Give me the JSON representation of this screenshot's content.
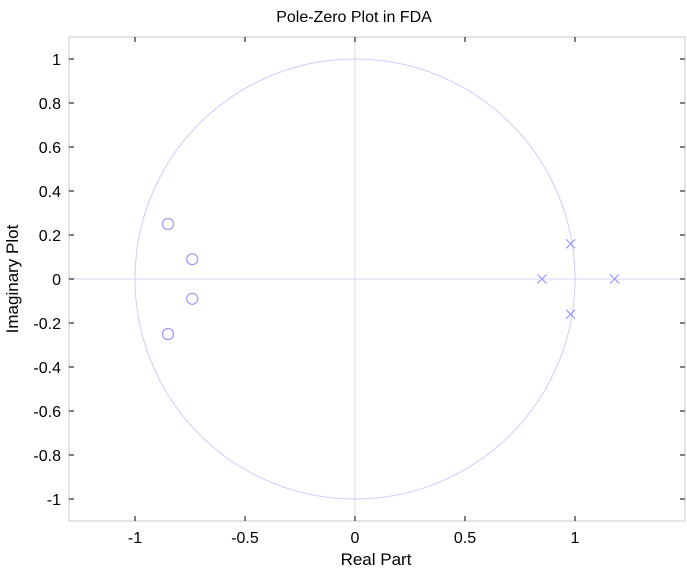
{
  "chart_data": {
    "type": "scatter",
    "title": "Pole-Zero Plot in FDA",
    "xlabel": "Real Part",
    "ylabel": "Imaginary Plot",
    "xlim": [
      -1.3,
      1.5
    ],
    "ylim": [
      -1.1,
      1.1
    ],
    "x_ticks": [
      -1,
      -0.5,
      0,
      0.5,
      1
    ],
    "x_tick_labels": [
      "-1",
      "-0.5",
      "0",
      "0.5",
      "1"
    ],
    "y_ticks": [
      1,
      0.8,
      0.6,
      0.4,
      0.2,
      0,
      -0.2,
      -0.4,
      -0.6,
      -0.8,
      -1
    ],
    "y_tick_labels": [
      "1",
      "0.8",
      "0.6",
      "0.4",
      "0.2",
      "0",
      "-0.2",
      "-0.4",
      "-0.6",
      "-0.8",
      "-1"
    ],
    "unit_circle": true,
    "grid": false,
    "marker_color": "#9999ff",
    "circle_color": "#ccccff",
    "axis_color": "#d8d8f0",
    "series": [
      {
        "marker": "o",
        "points": [
          {
            "x": -0.85,
            "y": 0.25
          },
          {
            "x": -0.74,
            "y": 0.09
          },
          {
            "x": -0.74,
            "y": -0.09
          },
          {
            "x": -0.85,
            "y": -0.25
          }
        ]
      },
      {
        "marker": "x",
        "points": [
          {
            "x": 0.85,
            "y": 0.0
          },
          {
            "x": 0.98,
            "y": 0.16
          },
          {
            "x": 0.98,
            "y": -0.16
          },
          {
            "x": 1.18,
            "y": 0.0
          }
        ]
      }
    ]
  }
}
